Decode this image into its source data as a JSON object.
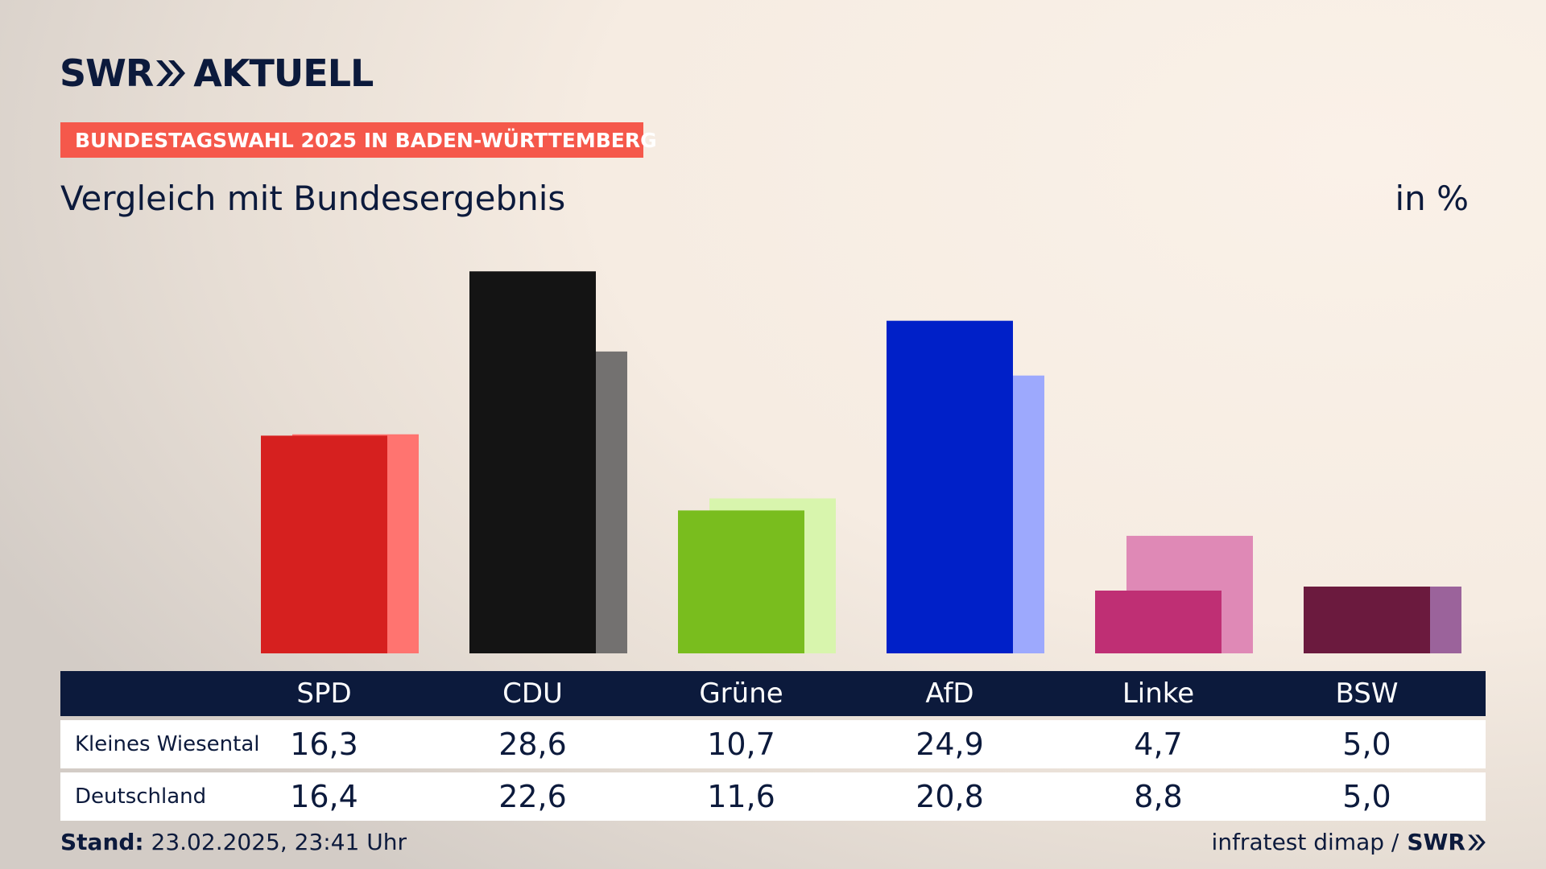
{
  "header": {
    "logo_left": "SWR",
    "logo_right": "AKTUELL",
    "banner": "BUNDESTAGSWAHL 2025 IN BADEN-WÜRTTEMBERG",
    "subtitle": "Vergleich mit Bundesergebnis",
    "unit": "in %"
  },
  "colors": {
    "navy": "#0c1a3c",
    "banner": "#f5584b"
  },
  "chart_data": {
    "type": "bar",
    "title": "Vergleich mit Bundesergebnis",
    "ylabel": "in %",
    "ylim": [
      0,
      30
    ],
    "grid": false,
    "categories": [
      "SPD",
      "CDU",
      "Grüne",
      "AfD",
      "Linke",
      "BSW"
    ],
    "series": [
      {
        "name": "Kleines Wiesental",
        "values": [
          16.3,
          28.6,
          10.7,
          24.9,
          4.7,
          5.0
        ],
        "colors": [
          "#d6201f",
          "#141414",
          "#79bd1e",
          "#0020c8",
          "#bf2f74",
          "#6b1a3e"
        ]
      },
      {
        "name": "Deutschland",
        "values": [
          16.4,
          22.6,
          11.6,
          20.8,
          8.8,
          5.0
        ],
        "colors": [
          "#ff7470",
          "#737170",
          "#d8f5ad",
          "#9da9fd",
          "#df89b6",
          "#9b639b"
        ]
      }
    ],
    "value_labels": [
      [
        "16,3",
        "28,6",
        "10,7",
        "24,9",
        "4,7",
        "5,0"
      ],
      [
        "16,4",
        "22,6",
        "11,6",
        "20,8",
        "8,8",
        "5,0"
      ]
    ]
  },
  "footer": {
    "stand_label": "Stand:",
    "stand_value": "23.02.2025, 23:41 Uhr",
    "source": "infratest dimap /",
    "source_logo": "SWR"
  }
}
